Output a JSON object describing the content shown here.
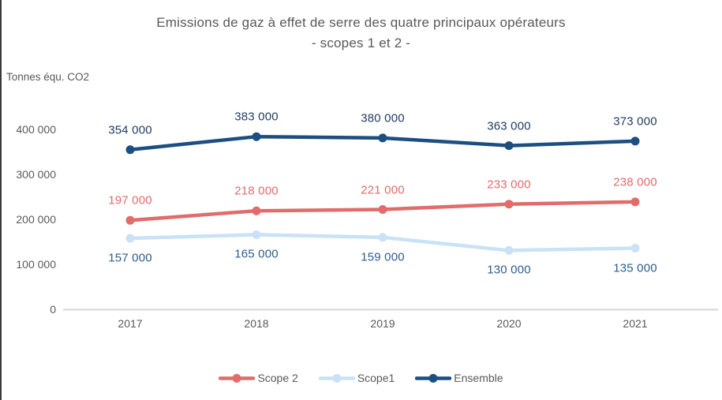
{
  "chart_data": {
    "type": "line",
    "title_line1": "Emissions de gaz à effet de serre des quatre principaux opérateurs",
    "title_line2": "- scopes 1 et 2 -",
    "unit_label": "Tonnes équ. CO2",
    "categories": [
      "2017",
      "2018",
      "2019",
      "2020",
      "2021"
    ],
    "ylim": [
      0,
      430000
    ],
    "grid": false,
    "legend_position": "bottom",
    "axis_line_color": "#d6d6d6",
    "yticks": [
      {
        "value": 400000,
        "label": "400 000"
      },
      {
        "value": 300000,
        "label": "300 000"
      },
      {
        "value": 200000,
        "label": "200 000"
      },
      {
        "value": 100000,
        "label": "100 000"
      },
      {
        "value": 0,
        "label": "0"
      }
    ],
    "series": [
      {
        "name": "Scope 2",
        "color": "#e26b6b",
        "label_color": "#e26b6b",
        "label_side": "above",
        "values": [
          197000,
          218000,
          221000,
          233000,
          238000
        ],
        "labels": [
          "197 000",
          "218 000",
          "221 000",
          "233 000",
          "238 000"
        ]
      },
      {
        "name": "Scope1",
        "color": "#c9e2f5",
        "label_color": "#2e5c8a",
        "label_side": "below",
        "values": [
          157000,
          165000,
          159000,
          130000,
          135000
        ],
        "labels": [
          "157 000",
          "165 000",
          "159 000",
          "130 000",
          "135 000"
        ]
      },
      {
        "name": "Ensemble",
        "color": "#1c4e80",
        "label_color": "#1f3a5f",
        "label_side": "above",
        "values": [
          354000,
          383000,
          380000,
          363000,
          373000
        ],
        "labels": [
          "354 000",
          "383 000",
          "380 000",
          "363 000",
          "373 000"
        ]
      }
    ]
  }
}
